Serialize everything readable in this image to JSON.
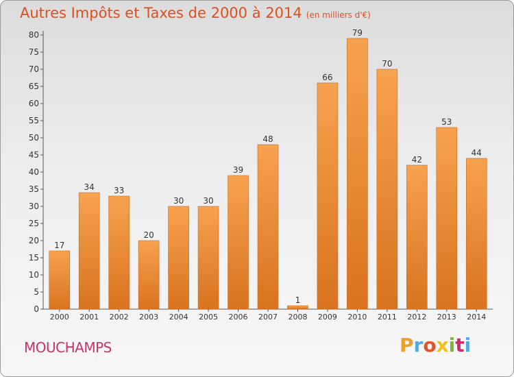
{
  "header": {
    "title": "Autres Impôts et Taxes de 2000 à 2014",
    "unit": "(en milliers d'€)"
  },
  "footer": {
    "town": "MOUCHAMPS",
    "logo_text": "Proxiti"
  },
  "colors": {
    "title": "#e04e1b",
    "town": "#c8336b",
    "bar_top": "#f7a24f",
    "bar_bottom": "#d9731f",
    "logo_letters": [
      "#f0a02a",
      "#55a8e0",
      "#e0552a",
      "#f0c020",
      "#7ab83a",
      "#d02a6a",
      "#55a8e0"
    ]
  },
  "chart_data": {
    "type": "bar",
    "categories": [
      "2000",
      "2001",
      "2002",
      "2003",
      "2004",
      "2005",
      "2006",
      "2007",
      "2008",
      "2009",
      "2010",
      "2011",
      "2012",
      "2013",
      "2014"
    ],
    "values": [
      17,
      34,
      33,
      20,
      30,
      30,
      39,
      48,
      1,
      66,
      79,
      70,
      42,
      53,
      44
    ],
    "yticks": [
      0,
      5,
      10,
      15,
      20,
      25,
      30,
      35,
      40,
      45,
      50,
      55,
      60,
      65,
      70,
      75,
      80
    ],
    "ylim": [
      0,
      80
    ],
    "grid": false,
    "data_labels": true
  }
}
